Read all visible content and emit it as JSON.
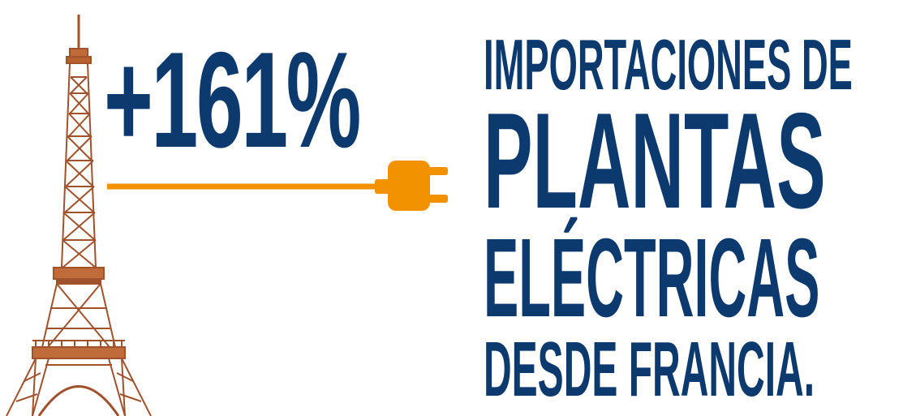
{
  "infographic": {
    "stat": "+161%",
    "headline": {
      "line1": "IMPORTACIONES DE",
      "line2": "PLANTAS",
      "line3": "ELÉCTRICAS",
      "line4": "DESDE FRANCIA."
    }
  },
  "icons": {
    "tower": "eiffel-tower-icon",
    "plug": "electric-plug-icon"
  },
  "colors": {
    "navy": "#0d3a6e",
    "orange": "#f39200",
    "tower_brown": "#a0522d",
    "background": "#ffffff"
  }
}
